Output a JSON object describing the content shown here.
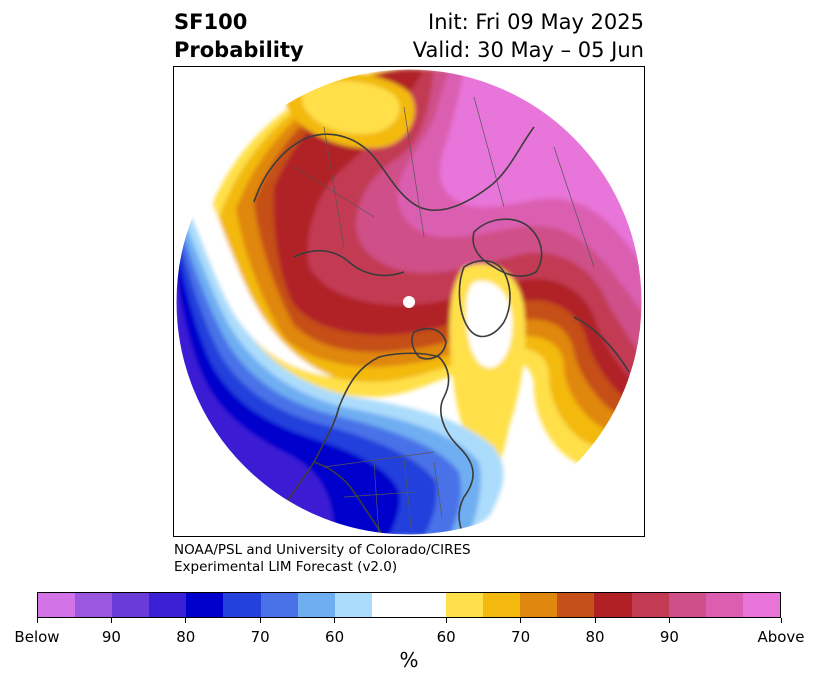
{
  "title": {
    "product": "SF100",
    "subtitle": "Probability",
    "init": "Init: Fri 09 May 2025",
    "valid": "Valid: 30 May – 05 Jun"
  },
  "credit": {
    "line1": "NOAA/PSL and University of Colorado/CIRES",
    "line2": "Experimental LIM Forecast (v2.0)"
  },
  "colorbar": {
    "unit": "%",
    "segments": [
      {
        "category": "below",
        "color": "#d373e8"
      },
      {
        "category": "below",
        "color": "#9b57e0"
      },
      {
        "category": "below",
        "color": "#6b3bd9"
      },
      {
        "category": "below",
        "color": "#3a1fd4"
      },
      {
        "category": "below",
        "color": "#0000cc"
      },
      {
        "category": "below",
        "color": "#2341dc"
      },
      {
        "category": "below",
        "color": "#4a72e8"
      },
      {
        "category": "below",
        "color": "#70aef2"
      },
      {
        "category": "below",
        "color": "#acdcfb"
      },
      {
        "category": "neutral",
        "color": "#ffffff"
      },
      {
        "category": "above",
        "color": "#ffe04a"
      },
      {
        "category": "above",
        "color": "#f3b90f"
      },
      {
        "category": "above",
        "color": "#e0870f"
      },
      {
        "category": "above",
        "color": "#c55019"
      },
      {
        "category": "above",
        "color": "#b02025"
      },
      {
        "category": "above",
        "color": "#c23b52"
      },
      {
        "category": "above",
        "color": "#cf4f88"
      },
      {
        "category": "above",
        "color": "#db5eb1"
      },
      {
        "category": "above",
        "color": "#e874d9"
      }
    ],
    "tick_labels": [
      "Below",
      "90",
      "80",
      "70",
      "60",
      "60",
      "70",
      "80",
      "90",
      "Above"
    ]
  },
  "map": {
    "projection": "north-polar-stereographic",
    "region": "Northern Hemisphere",
    "colors": {
      "land_outline": "#3c3c3c",
      "pole_marker": "#ffffff"
    }
  }
}
